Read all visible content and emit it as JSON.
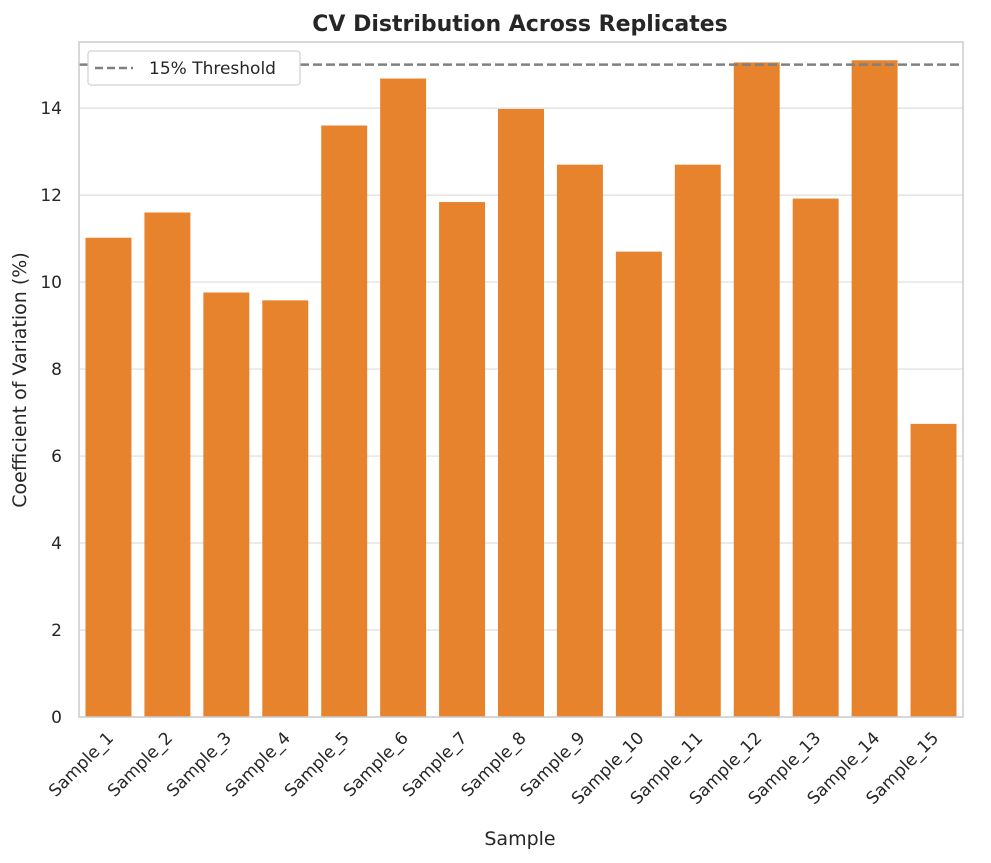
{
  "chart_data": {
    "type": "bar",
    "title": "CV Distribution Across Replicates",
    "xlabel": "Sample",
    "ylabel": "Coefficient of Variation (%)",
    "categories": [
      "Sample_1",
      "Sample_2",
      "Sample_3",
      "Sample_4",
      "Sample_5",
      "Sample_6",
      "Sample_7",
      "Sample_8",
      "Sample_9",
      "Sample_10",
      "Sample_11",
      "Sample_12",
      "Sample_13",
      "Sample_14",
      "Sample_15"
    ],
    "values": [
      11.02,
      11.6,
      9.76,
      9.58,
      13.6,
      14.68,
      11.84,
      13.98,
      12.7,
      10.7,
      12.7,
      15.05,
      11.92,
      15.1,
      6.74
    ],
    "ylim": [
      0,
      15.52
    ],
    "yticks": [
      0,
      2,
      4,
      6,
      8,
      10,
      12,
      14
    ],
    "grid": true,
    "bar_color": "#e6832c",
    "threshold": {
      "label": "15% Threshold",
      "value": 15,
      "color": "#808080",
      "style": "dashed"
    },
    "legend": {
      "placement": "top-left",
      "entries": [
        "15% Threshold"
      ]
    }
  }
}
